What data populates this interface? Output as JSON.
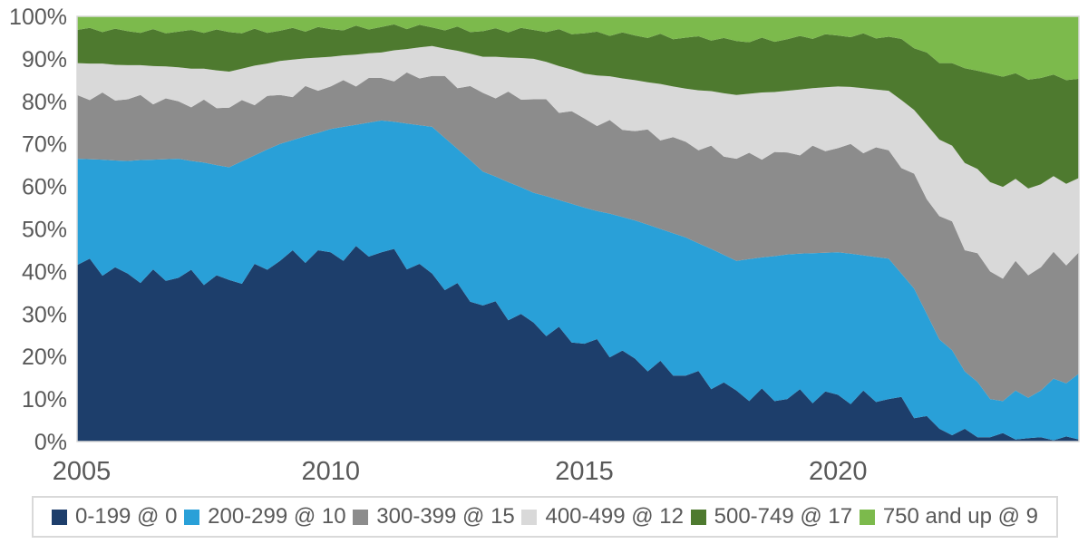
{
  "chart_data": {
    "type": "area",
    "stacking": "percent",
    "title": "",
    "xlabel": "",
    "ylabel": "",
    "grid": false,
    "legend_position": "bottom",
    "text_color": "#595959",
    "plot_border_color": "#d9d9d9",
    "x_start": 2005,
    "x_step": 0.25,
    "x_axis": {
      "tick_values": [
        2005,
        2010,
        2015,
        2020
      ],
      "tick_labels": [
        "2005",
        "2010",
        "2015",
        "2020"
      ]
    },
    "y_axis": {
      "min": 0,
      "max": 100,
      "tick_values": [
        0,
        10,
        20,
        30,
        40,
        50,
        60,
        70,
        80,
        90,
        100
      ],
      "tick_labels": [
        "0%",
        "10%",
        "20%",
        "30%",
        "40%",
        "50%",
        "60%",
        "70%",
        "80%",
        "90%",
        "100%"
      ]
    },
    "series": [
      {
        "label": "0-199 @ 0",
        "color": "#1d3e6b",
        "values": [
          41.5,
          43,
          39,
          41,
          39.5,
          37.3,
          40.5,
          37.8,
          38.5,
          40.4,
          36.8,
          39.1,
          38,
          37.1,
          41.8,
          40.4,
          42.5,
          45,
          42,
          45,
          44.5,
          42.5,
          46,
          43.5,
          44.5,
          45.3,
          40.5,
          41.8,
          39.5,
          35.6,
          37.3,
          32.9,
          32,
          33,
          28.5,
          30,
          28,
          24.8,
          27,
          23.3,
          23,
          24.1,
          19.8,
          21.4,
          19.5,
          16.5,
          19,
          15.5,
          15.5,
          16.6,
          12.3,
          13.9,
          12,
          9.5,
          12.5,
          9.5,
          10,
          12.3,
          9,
          11.8,
          11,
          8.8,
          12,
          9.3,
          10,
          10.5,
          5.5,
          6,
          3,
          1.5,
          3,
          1,
          1,
          2,
          0.5,
          0.8,
          1,
          0.3,
          1.2,
          0.5
        ]
      },
      {
        "label": "200-299 @ 10",
        "color": "#29a0d8",
        "values": [
          25,
          23.4,
          27.3,
          25.1,
          26.5,
          28.9,
          25.8,
          28.6,
          28,
          25.6,
          28.8,
          25.9,
          26.5,
          28.8,
          25.5,
          28.3,
          27.5,
          25.9,
          29.8,
          27.6,
          29,
          31.5,
          28.5,
          31.5,
          31,
          29.9,
          34.3,
          32.6,
          34.5,
          35.8,
          31.5,
          33.3,
          31.5,
          29.3,
          32.5,
          29.8,
          30.5,
          32.9,
          29.8,
          32.6,
          32,
          30.1,
          33.8,
          31.4,
          32.5,
          34.5,
          31,
          33.5,
          32.5,
          30,
          33,
          30,
          30.5,
          33.4,
          30.8,
          34.1,
          34,
          31.9,
          35.3,
          32.6,
          33.5,
          35.4,
          31.8,
          34.1,
          33,
          29,
          30.5,
          24,
          21,
          20,
          13.5,
          13,
          9,
          7.5,
          11.5,
          9.5,
          11,
          14.5,
          12.5,
          15.5
        ]
      },
      {
        "label": "300-399 @ 15",
        "color": "#8c8c8c",
        "values": [
          15,
          13.9,
          15.8,
          14.1,
          14.5,
          15.3,
          13,
          14.3,
          13.5,
          12.6,
          14.8,
          13.4,
          14,
          14.4,
          11.8,
          12.6,
          11.5,
          10.1,
          11.8,
          9.9,
          10,
          11,
          9,
          10.5,
          10,
          9.5,
          12,
          11,
          12,
          14.6,
          14.3,
          17.4,
          18.5,
          18.4,
          21.3,
          20.6,
          22,
          22.8,
          20.5,
          21.8,
          21,
          20,
          22,
          20.5,
          21,
          22.4,
          20.8,
          22.6,
          22.5,
          21.9,
          24.3,
          23.1,
          24,
          25,
          23,
          24.5,
          24,
          23.1,
          25.3,
          23.9,
          24.5,
          25.8,
          24,
          25.8,
          25.5,
          24.8,
          27,
          27,
          29,
          30.3,
          28.5,
          30.3,
          30,
          28.8,
          30.5,
          28.8,
          29,
          29.8,
          27.7,
          28.5
        ]
      },
      {
        "label": "400-499 @ 12",
        "color": "#d9d9d9",
        "values": [
          7.5,
          8.6,
          6.8,
          8.4,
          8,
          7,
          9,
          7.5,
          8,
          9.1,
          7.3,
          8.9,
          8.5,
          7.4,
          9.3,
          7.6,
          8,
          8.8,
          6.5,
          7.8,
          7,
          5.8,
          7.5,
          5.8,
          6,
          7.3,
          5.5,
          7.3,
          7,
          6.4,
          8.8,
          7.6,
          8.5,
          9.8,
          8,
          9.8,
          9.5,
          8.8,
          11,
          9.8,
          10.5,
          11.9,
          10.3,
          12.1,
          12,
          11.1,
          13.3,
          11.9,
          12.5,
          14.1,
          12.8,
          14.9,
          15,
          13.9,
          15.8,
          14.1,
          14.5,
          15.5,
          13.5,
          15,
          14.5,
          13.4,
          15.3,
          13.6,
          14,
          16,
          15,
          17.5,
          18,
          17.8,
          20.5,
          19.8,
          21,
          21.6,
          19.3,
          20.4,
          19.5,
          17.8,
          19.2,
          17.5
        ]
      },
      {
        "label": "500-749 @ 17",
        "color": "#4e7a2f",
        "values": [
          7.8,
          8.4,
          7.4,
          8.5,
          8,
          7.6,
          8.7,
          7.8,
          8.4,
          9.1,
          8.4,
          9.6,
          9.3,
          8.3,
          8.7,
          7.2,
          7.1,
          7.5,
          6.3,
          7.2,
          6.5,
          5.9,
          6.8,
          5.6,
          6,
          6.1,
          4.7,
          5.3,
          4.4,
          4.3,
          5.7,
          5.1,
          6,
          6.7,
          5.9,
          7.1,
          6.8,
          7,
          8.7,
          8.3,
          9.5,
          10.3,
          9.5,
          10.8,
          10.5,
          10.4,
          11.8,
          11.1,
          12,
          12.7,
          11.9,
          13,
          12.7,
          12.1,
          12.9,
          11.8,
          12.1,
          12.6,
          11.6,
          12.5,
          12,
          11.7,
          12.9,
          12,
          12.7,
          14.4,
          14.5,
          17,
          18,
          19.4,
          22.3,
          23.1,
          25.5,
          25.9,
          24.8,
          25.6,
          25,
          23.9,
          24.4,
          23.3
        ]
      },
      {
        "label": "750 and up @ 9",
        "color": "#7cba4c",
        "values": [
          3.2,
          2.7,
          3.7,
          2.9,
          3.5,
          3.9,
          3,
          4,
          3.6,
          3.2,
          3.9,
          3.1,
          3.7,
          4,
          2.9,
          3.9,
          3.4,
          2.7,
          3.6,
          2.5,
          3,
          3.3,
          2.2,
          3.1,
          2.5,
          1.9,
          3,
          2,
          2.6,
          3.3,
          2.4,
          3.7,
          3.5,
          2.8,
          3.8,
          2.7,
          3.2,
          3.7,
          3,
          4.2,
          4,
          3.6,
          4.6,
          3.8,
          4.5,
          5.1,
          4.1,
          5.4,
          5,
          4.7,
          5.7,
          5.1,
          5.8,
          6.1,
          5,
          6,
          5.4,
          4.6,
          5.3,
          4.2,
          4.5,
          4.9,
          4,
          5.2,
          4.8,
          5.3,
          7.5,
          8.5,
          11,
          11,
          12.2,
          12.8,
          13.5,
          14.2,
          13.4,
          14.9,
          14.5,
          13.7,
          15,
          14.7
        ]
      }
    ]
  }
}
